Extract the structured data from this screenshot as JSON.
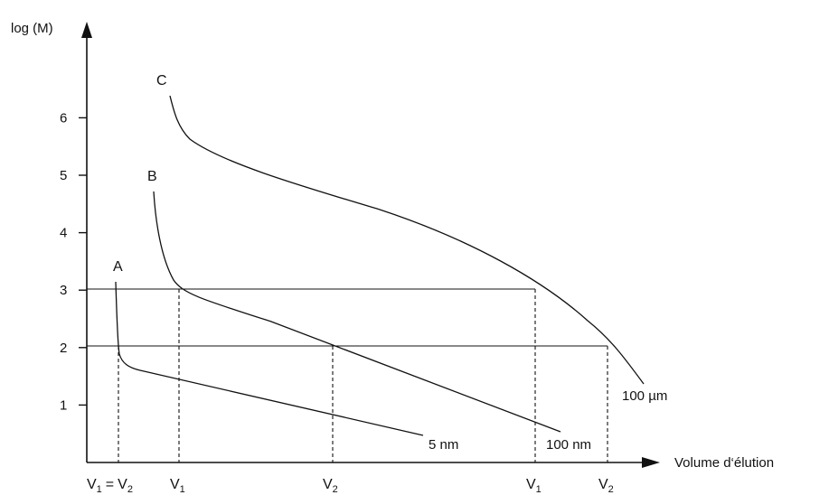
{
  "chart_data": {
    "type": "line",
    "ylabel": "log (M)",
    "xlabel": "Volume d‘élution",
    "y_ticks": [
      "1",
      "2",
      "3",
      "4",
      "5",
      "6"
    ],
    "grid": false,
    "series": [
      {
        "name": "A",
        "end_label": "5 nm"
      },
      {
        "name": "B",
        "end_label": "100 nm"
      },
      {
        "name": "C",
        "end_label": "100 µm"
      }
    ],
    "reference_lines_logM": [
      2,
      3
    ],
    "volume_markers": [
      {
        "sub1": "V",
        "idx1": "1",
        "eq": "=",
        "sub2": "V",
        "idx2": "2"
      },
      {
        "sub": "V",
        "idx": "1"
      },
      {
        "sub": "V",
        "idx": "2"
      },
      {
        "sub": "V",
        "idx": "1"
      },
      {
        "sub": "V",
        "idx": "2"
      }
    ]
  }
}
